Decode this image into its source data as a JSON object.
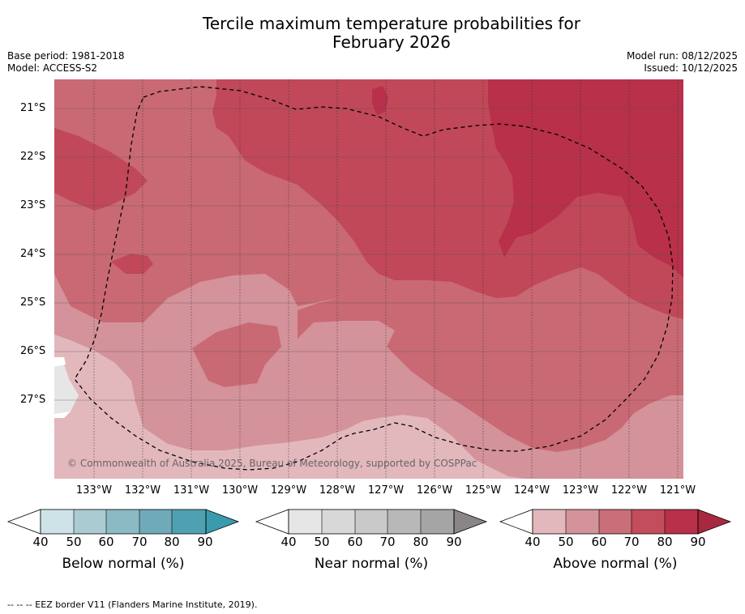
{
  "title_line1": "Tercile maximum temperature probabilities for",
  "title_line2": "February 2026",
  "base_period": "Base period: 1981-2018",
  "model": "Model: ACCESS-S2",
  "model_run": "Model run: 08/12/2025",
  "issued": "Issued: 10/12/2025",
  "copyright": "© Commonwealth of Australia 2025, Bureau of Meteorology, supported by COSPPac",
  "lat_labels": [
    "21°S",
    "22°S",
    "23°S",
    "24°S",
    "25°S",
    "26°S",
    "27°S"
  ],
  "lon_labels": [
    "133°W",
    "132°W",
    "131°W",
    "130°W",
    "129°W",
    "128°W",
    "127°W",
    "126°W",
    "125°W",
    "124°W",
    "123°W",
    "122°W",
    "121°W"
  ],
  "colorbars": [
    {
      "label": "Below normal (%)",
      "ticks": [
        "40",
        "50",
        "60",
        "70",
        "80",
        "90"
      ],
      "colors": [
        "#cde3e8",
        "#aacbd2",
        "#8cbac4",
        "#6eaab8",
        "#4fa0b0",
        "#3a9aae"
      ]
    },
    {
      "label": "Near normal (%)",
      "ticks": [
        "40",
        "50",
        "60",
        "70",
        "80",
        "90"
      ],
      "colors": [
        "#e6e6e6",
        "#d8d8d8",
        "#c9c9c9",
        "#b8b8b8",
        "#a5a5a5",
        "#8a8686"
      ]
    },
    {
      "label": "Above normal (%)",
      "ticks": [
        "40",
        "50",
        "60",
        "70",
        "80",
        "90"
      ],
      "colors": [
        "#e2b8bd",
        "#d4929a",
        "#ca6f79",
        "#c24d5b",
        "#b8304a",
        "#a8283f"
      ]
    }
  ],
  "legend_line": "--  --  -- EEZ border V11 (Flanders Marine Institute, 2019).",
  "colors": {
    "c40": "#e2b8bd",
    "c50": "#d4929a",
    "c60": "#c96973",
    "c70": "#c04858",
    "c80": "#b8304a",
    "near": "#e6e6e6"
  }
}
